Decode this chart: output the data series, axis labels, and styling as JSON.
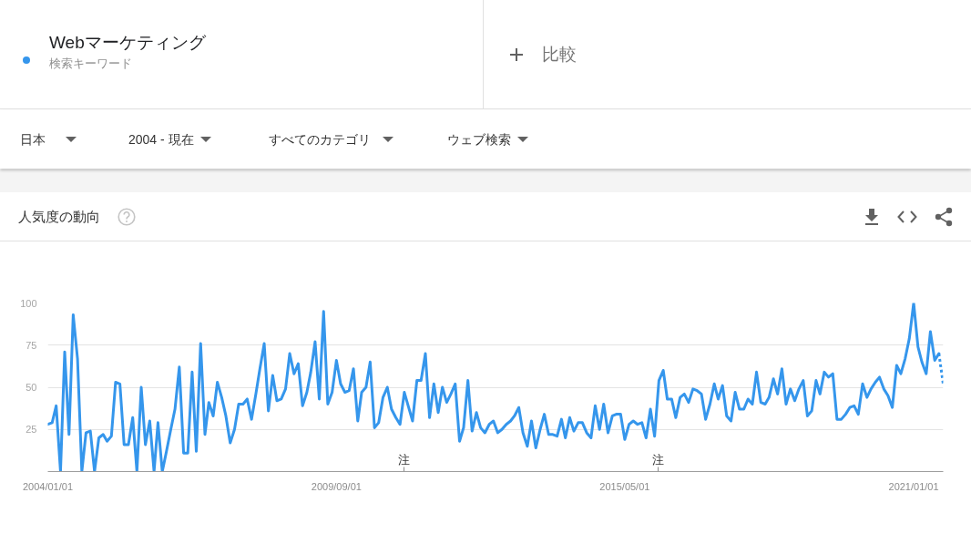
{
  "chart_data": {
    "type": "line",
    "title": "人気度の動向",
    "annotations": [
      "検索キーワード",
      "比較",
      "日本",
      "2004 - 現在",
      "すべてのカテゴリ",
      "ウェブ検索",
      "注",
      "注"
    ],
    "x": [
      "2004-01",
      "2004-02",
      "2004-03",
      "2004-04",
      "2004-05",
      "2004-06",
      "2004-07",
      "2004-08",
      "2004-09",
      "2004-10",
      "2004-11",
      "2004-12",
      "2005-01",
      "2005-02",
      "2005-03",
      "2005-04",
      "2005-05",
      "2005-06",
      "2005-07",
      "2005-08",
      "2005-09",
      "2005-10",
      "2005-11",
      "2005-12",
      "2006-01",
      "2006-02",
      "2006-03",
      "2006-04",
      "2006-05",
      "2006-06",
      "2006-07",
      "2006-08",
      "2006-09",
      "2006-10",
      "2006-11",
      "2006-12",
      "2007-01",
      "2007-02",
      "2007-03",
      "2007-04",
      "2007-05",
      "2007-06",
      "2007-07",
      "2007-08",
      "2007-09",
      "2007-10",
      "2007-11",
      "2007-12",
      "2008-01",
      "2008-02",
      "2008-03",
      "2008-04",
      "2008-05",
      "2008-06",
      "2008-07",
      "2008-08",
      "2008-09",
      "2008-10",
      "2008-11",
      "2008-12",
      "2009-01",
      "2009-02",
      "2009-03",
      "2009-04",
      "2009-05",
      "2009-06",
      "2009-07",
      "2009-08",
      "2009-09",
      "2009-10",
      "2009-11",
      "2009-12",
      "2010-01",
      "2010-02",
      "2010-03",
      "2010-04",
      "2010-05",
      "2010-06",
      "2010-07",
      "2010-08",
      "2010-09",
      "2010-10",
      "2010-11",
      "2010-12",
      "2011-01",
      "2011-02",
      "2011-03",
      "2011-04",
      "2011-05",
      "2011-06",
      "2011-07",
      "2011-08",
      "2011-09",
      "2011-10",
      "2011-11",
      "2011-12",
      "2012-01",
      "2012-02",
      "2012-03",
      "2012-04",
      "2012-05",
      "2012-06",
      "2012-07",
      "2012-08",
      "2012-09",
      "2012-10",
      "2012-11",
      "2012-12",
      "2013-01",
      "2013-02",
      "2013-03",
      "2013-04",
      "2013-05",
      "2013-06",
      "2013-07",
      "2013-08",
      "2013-09",
      "2013-10",
      "2013-11",
      "2013-12",
      "2014-01",
      "2014-02",
      "2014-03",
      "2014-04",
      "2014-05",
      "2014-06",
      "2014-07",
      "2014-08",
      "2014-09",
      "2014-10",
      "2014-11",
      "2014-12",
      "2015-01",
      "2015-02",
      "2015-03",
      "2015-04",
      "2015-05",
      "2015-06",
      "2015-07",
      "2015-08",
      "2015-09",
      "2015-10",
      "2015-11",
      "2015-12",
      "2016-01",
      "2016-02",
      "2016-03",
      "2016-04",
      "2016-05",
      "2016-06",
      "2016-07",
      "2016-08",
      "2016-09",
      "2016-10",
      "2016-11",
      "2016-12",
      "2017-01",
      "2017-02",
      "2017-03",
      "2017-04",
      "2017-05",
      "2017-06",
      "2017-07",
      "2017-08",
      "2017-09",
      "2017-10",
      "2017-11",
      "2017-12",
      "2018-01",
      "2018-02",
      "2018-03",
      "2018-04",
      "2018-05",
      "2018-06",
      "2018-07",
      "2018-08",
      "2018-09",
      "2018-10",
      "2018-11",
      "2018-12",
      "2019-01",
      "2019-02",
      "2019-03",
      "2019-04",
      "2019-05",
      "2019-06",
      "2019-07",
      "2019-08",
      "2019-09",
      "2019-10",
      "2019-11",
      "2019-12",
      "2020-01",
      "2020-02",
      "2020-03",
      "2020-04",
      "2020-05",
      "2020-06",
      "2020-07",
      "2020-08",
      "2020-09",
      "2020-10",
      "2020-11",
      "2020-12",
      "2021-01",
      "2021-02",
      "2021-03",
      "2021-04",
      "2021-05",
      "2021-06",
      "2021-07"
    ],
    "series": [
      {
        "name": "Webマーケティング",
        "color": "#3596ec",
        "values": [
          28,
          29,
          39,
          0,
          71,
          22,
          93,
          67,
          0,
          23,
          24,
          0,
          20,
          22,
          18,
          21,
          53,
          52,
          16,
          16,
          32,
          0,
          50,
          16,
          30,
          0,
          29,
          0,
          12,
          25,
          37,
          62,
          11,
          11,
          59,
          12,
          76,
          22,
          41,
          33,
          53,
          44,
          33,
          17,
          25,
          40,
          40,
          43,
          31,
          46,
          61,
          76,
          36,
          57,
          42,
          43,
          49,
          70,
          58,
          64,
          39,
          47,
          59,
          77,
          43,
          95,
          40,
          47,
          66,
          52,
          47,
          48,
          61,
          30,
          47,
          50,
          65,
          26,
          29,
          44,
          50,
          37,
          32,
          28,
          47,
          38,
          30,
          54,
          54,
          70,
          32,
          52,
          35,
          50,
          41,
          46,
          52,
          18,
          26,
          54,
          24,
          35,
          26,
          23,
          28,
          30,
          23,
          25,
          28,
          30,
          33,
          38,
          23,
          15,
          30,
          14,
          25,
          34,
          22,
          22,
          21,
          31,
          20,
          32,
          24,
          29,
          29,
          23,
          20,
          39,
          25,
          40,
          23,
          33,
          34,
          34,
          19,
          28,
          30,
          28,
          29,
          20,
          37,
          21,
          54,
          60,
          43,
          43,
          32,
          44,
          46,
          41,
          49,
          48,
          46,
          31,
          40,
          52,
          43,
          51,
          33,
          30,
          47,
          37,
          37,
          43,
          40,
          59,
          41,
          40,
          44,
          55,
          46,
          61,
          40,
          49,
          42,
          49,
          54,
          33,
          36,
          54,
          46,
          59,
          56,
          58,
          31,
          31,
          34,
          38,
          39,
          34,
          52,
          44,
          49,
          53,
          56,
          49,
          45,
          38,
          63,
          58,
          67,
          79,
          100,
          74,
          65,
          58,
          83,
          66,
          70
        ]
      },
      {
        "color": "#3596ec",
        "line_style": "dotted",
        "x": [
          "2021-07",
          "2021-08"
        ],
        "values": [
          70,
          52
        ]
      }
    ],
    "xlim": [
      "2004-01",
      "2021-08"
    ],
    "xticks": [
      {
        "value": "2004-01-01",
        "label": "2004/01/01"
      },
      {
        "value": "2009-09-01",
        "label": "2009/09/01"
      },
      {
        "value": "2015-05-01",
        "label": "2015/05/01"
      },
      {
        "value": "2021-01-01",
        "label": "2021/01/01"
      }
    ],
    "ylim": [
      0,
      100
    ],
    "yticks": [
      25,
      50,
      75,
      100
    ],
    "grid": "y",
    "legend": "top left"
  }
}
